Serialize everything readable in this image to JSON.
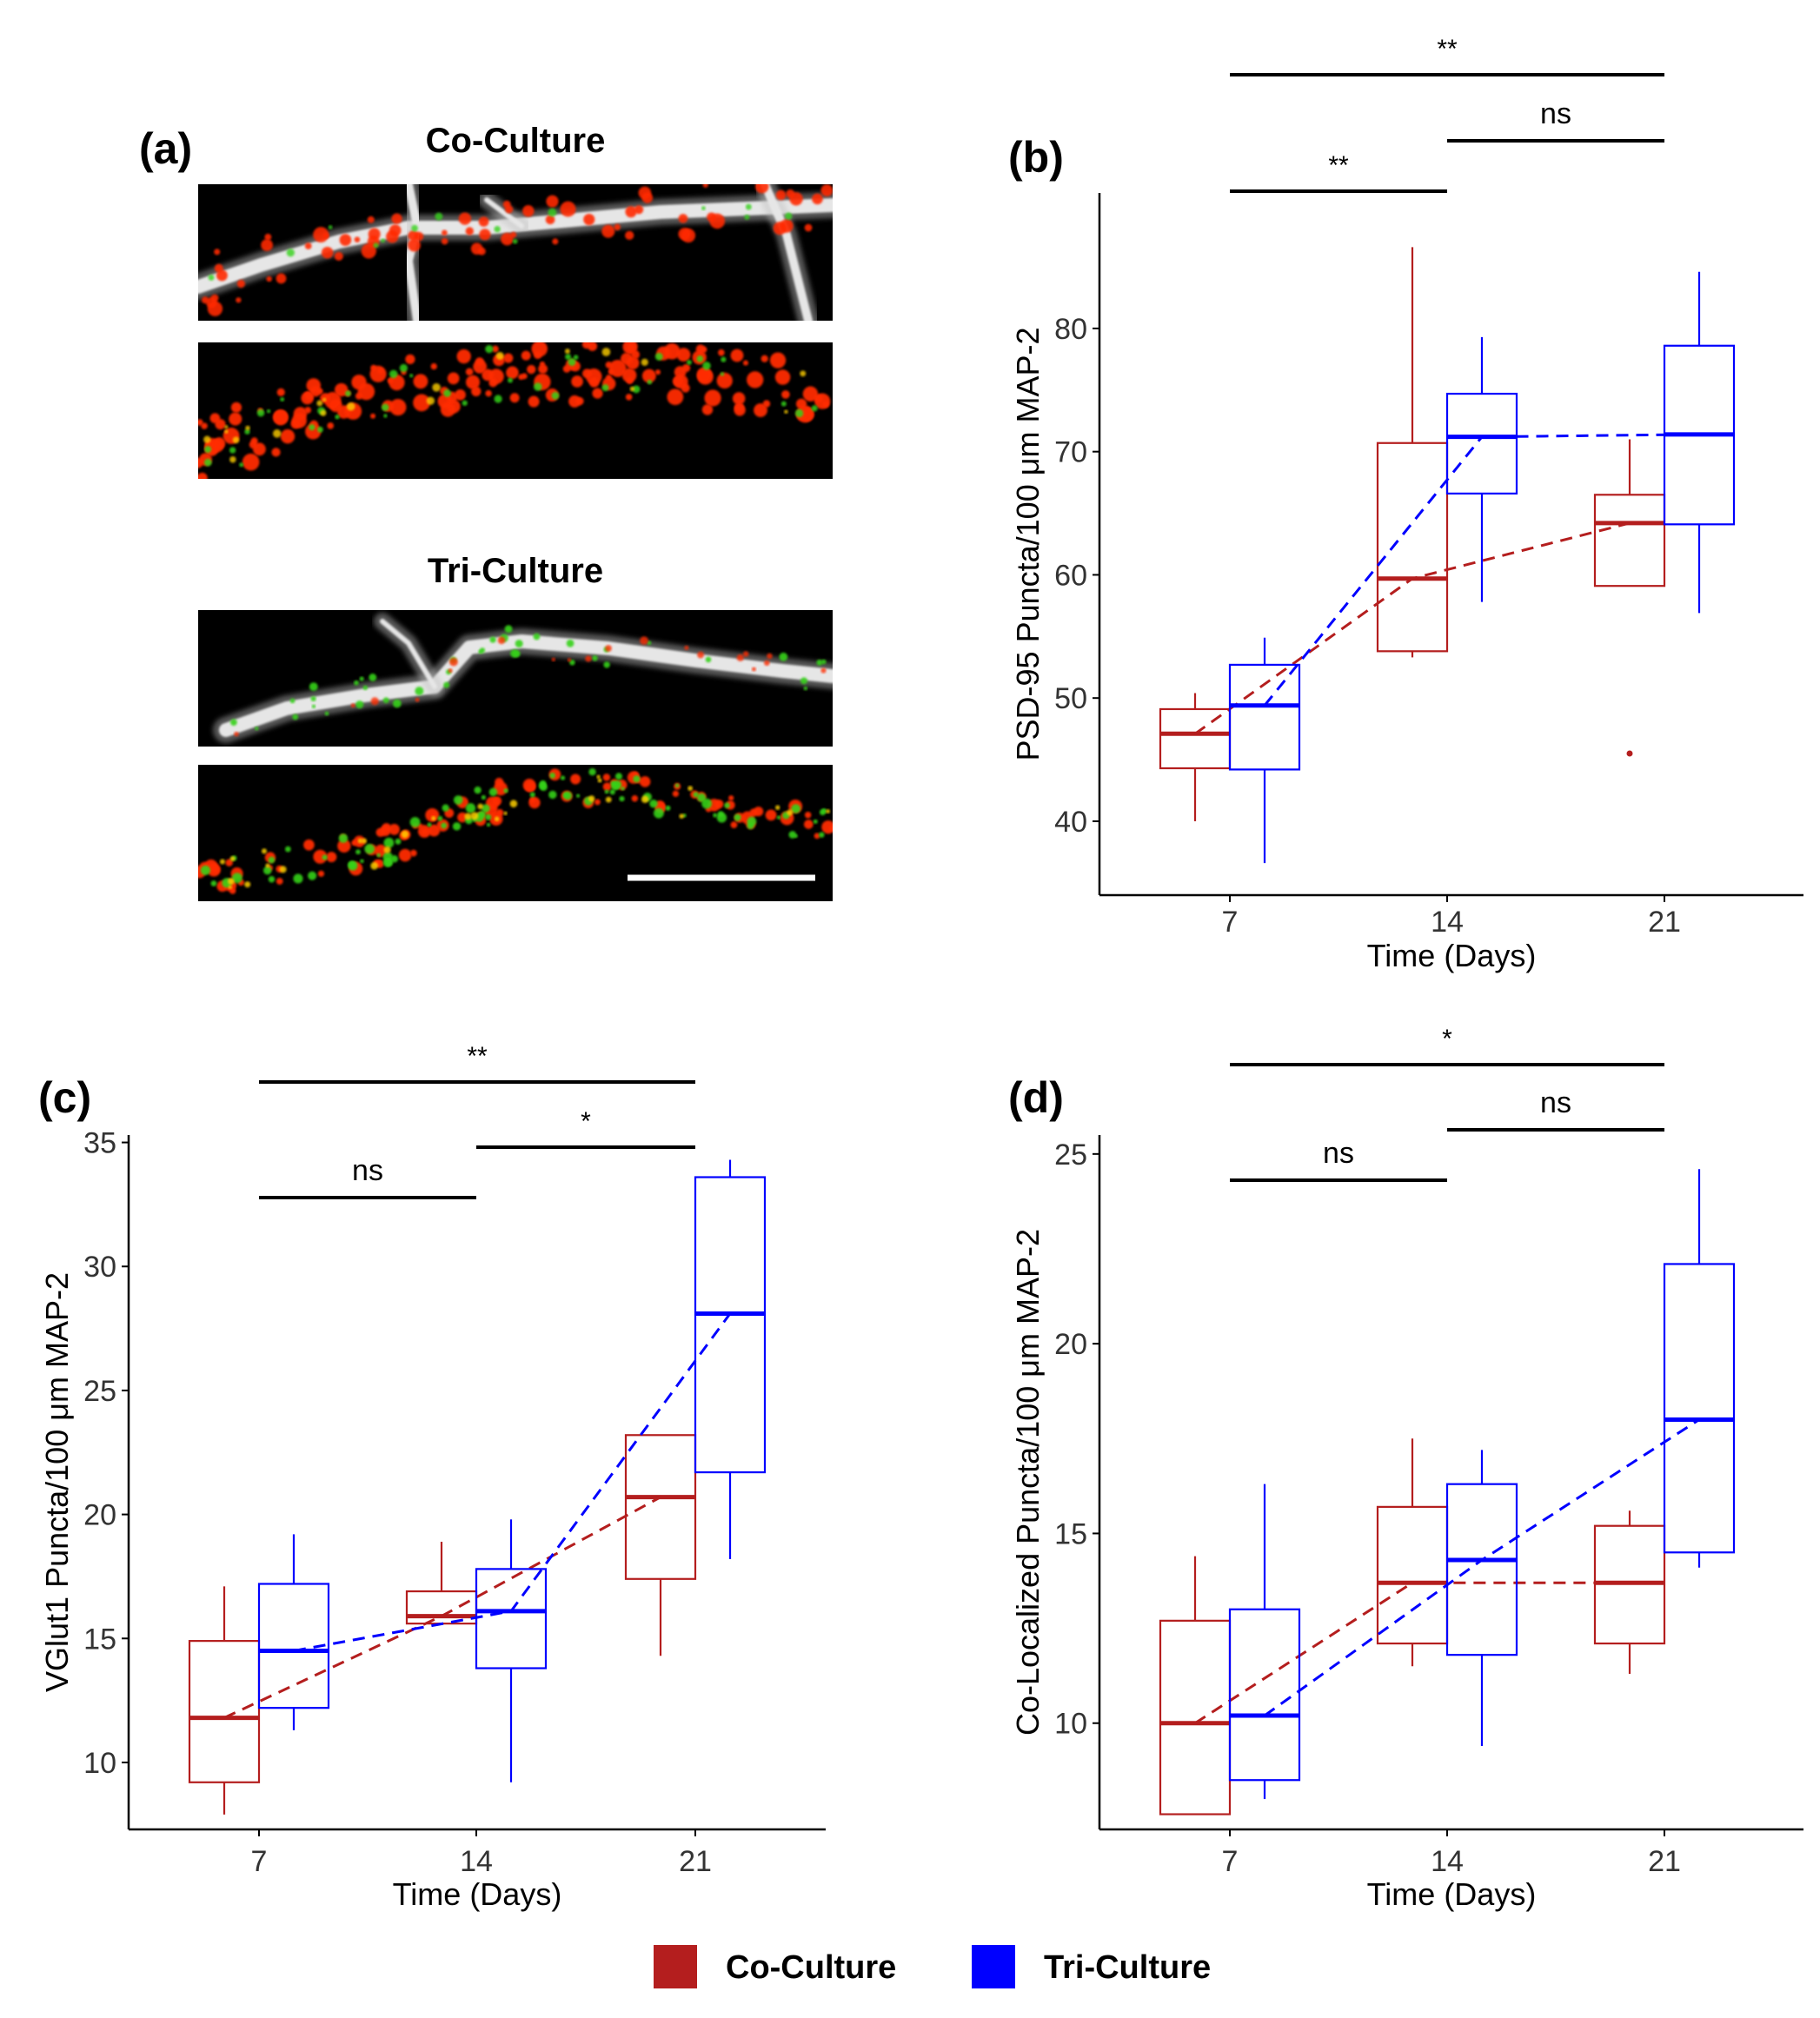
{
  "figure": {
    "panel_a": {
      "label": "(a)",
      "co_title": "Co-Culture",
      "tri_title": "Tri-Culture",
      "colors": {
        "background": "#000000",
        "dendrite": "#e6e6e6",
        "psd": "#ff2a00",
        "vglut": "#33d21a"
      }
    },
    "legend": [
      {
        "label": "Co-Culture",
        "color": "#b41e1e"
      },
      {
        "label": "Tri-Culture",
        "color": "#0000ff"
      }
    ]
  },
  "chart_data": [
    {
      "type": "box",
      "panel": "(b)",
      "xlabel": "Time (Days)",
      "ylabel": "PSD-95 Puncta/100 μm MAP-2",
      "categories": [
        "7",
        "14",
        "21"
      ],
      "ylim": [
        34,
        91
      ],
      "yticks": [
        40,
        50,
        60,
        70,
        80
      ],
      "series": [
        {
          "name": "Co-Culture",
          "color": "#b41e1e",
          "boxes": [
            {
              "min": 40,
              "q1": 44.3,
              "median": 47.1,
              "q3": 49.1,
              "max": 50.4,
              "outliers": []
            },
            {
              "min": 53.3,
              "q1": 53.8,
              "median": 59.7,
              "q3": 70.7,
              "max": 86.6,
              "outliers": []
            },
            {
              "min": 59.1,
              "q1": 59.1,
              "median": 64.2,
              "q3": 66.5,
              "max": 71.0,
              "outliers": [
                45.5
              ]
            }
          ]
        },
        {
          "name": "Tri-Culture",
          "color": "#0000ff",
          "boxes": [
            {
              "min": 36.6,
              "q1": 44.2,
              "median": 49.4,
              "q3": 52.7,
              "max": 54.9,
              "outliers": []
            },
            {
              "min": 57.8,
              "q1": 66.6,
              "median": 71.2,
              "q3": 74.7,
              "max": 79.3,
              "outliers": []
            },
            {
              "min": 56.9,
              "q1": 64.1,
              "median": 71.4,
              "q3": 78.6,
              "max": 84.6,
              "outliers": []
            }
          ]
        }
      ],
      "significance": [
        {
          "from": "7",
          "to": "14",
          "label": "**",
          "level": 0
        },
        {
          "from": "14",
          "to": "21",
          "label": "ns",
          "level": 1
        },
        {
          "from": "7",
          "to": "21",
          "label": "**",
          "level": 2
        }
      ]
    },
    {
      "type": "box",
      "panel": "(c)",
      "xlabel": "Time (Days)",
      "ylabel": "VGlut1 Puncta/100 μm MAP-2",
      "categories": [
        "7",
        "14",
        "21"
      ],
      "ylim": [
        7.3,
        35.3
      ],
      "yticks": [
        10,
        15,
        20,
        25,
        30,
        35
      ],
      "series": [
        {
          "name": "Co-Culture",
          "color": "#b41e1e",
          "boxes": [
            {
              "min": 7.9,
              "q1": 9.2,
              "median": 11.8,
              "q3": 14.9,
              "max": 17.1,
              "outliers": []
            },
            {
              "min": 15.6,
              "q1": 15.6,
              "median": 15.9,
              "q3": 16.9,
              "max": 18.9,
              "outliers": []
            },
            {
              "min": 14.3,
              "q1": 17.4,
              "median": 20.7,
              "q3": 23.2,
              "max": 23.2,
              "outliers": []
            }
          ]
        },
        {
          "name": "Tri-Culture",
          "color": "#0000ff",
          "boxes": [
            {
              "min": 11.3,
              "q1": 12.2,
              "median": 14.5,
              "q3": 17.2,
              "max": 19.2,
              "outliers": []
            },
            {
              "min": 9.2,
              "q1": 13.8,
              "median": 16.1,
              "q3": 17.8,
              "max": 19.8,
              "outliers": []
            },
            {
              "min": 18.2,
              "q1": 21.7,
              "median": 28.1,
              "q3": 33.6,
              "max": 34.3,
              "outliers": []
            }
          ]
        }
      ],
      "significance": [
        {
          "from": "7",
          "to": "14",
          "label": "ns",
          "level": 0
        },
        {
          "from": "14",
          "to": "21",
          "label": "*",
          "level": 1
        },
        {
          "from": "7",
          "to": "21",
          "label": "**",
          "level": 2
        }
      ]
    },
    {
      "type": "box",
      "panel": "(d)",
      "xlabel": "Time (Days)",
      "ylabel": "Co-Localized Puncta/100 μm MAP-2",
      "categories": [
        "7",
        "14",
        "21"
      ],
      "ylim": [
        7.2,
        25.5
      ],
      "yticks": [
        10,
        15,
        20,
        25
      ],
      "series": [
        {
          "name": "Co-Culture",
          "color": "#b41e1e",
          "boxes": [
            {
              "min": 7.6,
              "q1": 7.6,
              "median": 10.0,
              "q3": 12.7,
              "max": 14.4,
              "outliers": []
            },
            {
              "min": 11.5,
              "q1": 12.1,
              "median": 13.7,
              "q3": 15.7,
              "max": 17.5,
              "outliers": []
            },
            {
              "min": 11.3,
              "q1": 12.1,
              "median": 13.7,
              "q3": 15.2,
              "max": 15.6,
              "outliers": []
            }
          ]
        },
        {
          "name": "Tri-Culture",
          "color": "#0000ff",
          "boxes": [
            {
              "min": 8.0,
              "q1": 8.5,
              "median": 10.2,
              "q3": 13.0,
              "max": 16.3,
              "outliers": []
            },
            {
              "min": 9.4,
              "q1": 11.8,
              "median": 14.3,
              "q3": 16.3,
              "max": 17.2,
              "outliers": []
            },
            {
              "min": 14.1,
              "q1": 14.5,
              "median": 18.0,
              "q3": 22.1,
              "max": 24.6,
              "outliers": []
            }
          ]
        }
      ],
      "significance": [
        {
          "from": "7",
          "to": "14",
          "label": "ns",
          "level": 0
        },
        {
          "from": "14",
          "to": "21",
          "label": "ns",
          "level": 1
        },
        {
          "from": "7",
          "to": "21",
          "label": "*",
          "level": 2
        }
      ]
    }
  ]
}
